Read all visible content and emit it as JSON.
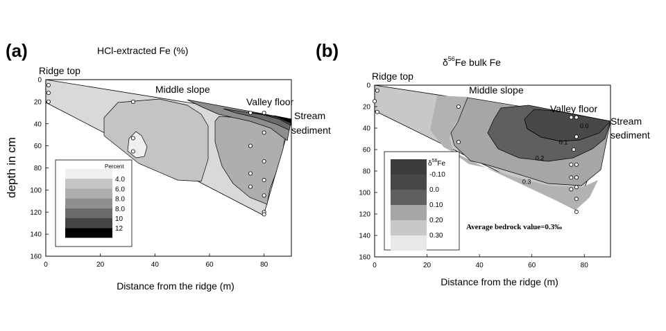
{
  "chart_data": [
    {
      "panel": "(a)",
      "type": "contour",
      "title": "HCl-extracted Fe (%)",
      "xlabel": "Distance from the ridge (m)",
      "ylabel": "depth in cm",
      "xlim": [
        0,
        90
      ],
      "ylim": [
        160,
        0
      ],
      "xticks": [
        "0",
        "20",
        "40",
        "60",
        "80"
      ],
      "yticks": [
        "0",
        "20",
        "40",
        "60",
        "80",
        "100",
        "120",
        "140",
        "160"
      ],
      "sites": [
        "Ridge top",
        "Middle slope",
        "Valley floor",
        "Stream",
        "sediment"
      ],
      "legend": {
        "title": "Percent",
        "placement": "bottom-left",
        "entries": [
          "4.0",
          "6.0",
          "8.0",
          "8.0",
          "10",
          "12"
        ]
      },
      "sample_points": [
        {
          "x": 1,
          "y": 5
        },
        {
          "x": 1,
          "y": 12
        },
        {
          "x": 1,
          "y": 20
        },
        {
          "x": 32,
          "y": 20
        },
        {
          "x": 32,
          "y": 53
        },
        {
          "x": 32,
          "y": 65
        },
        {
          "x": 75,
          "y": 30
        },
        {
          "x": 75,
          "y": 60
        },
        {
          "x": 75,
          "y": 85
        },
        {
          "x": 75,
          "y": 97
        },
        {
          "x": 80,
          "y": 30
        },
        {
          "x": 80,
          "y": 48
        },
        {
          "x": 80,
          "y": 74
        },
        {
          "x": 80,
          "y": 91
        },
        {
          "x": 80,
          "y": 105
        },
        {
          "x": 80,
          "y": 120
        },
        {
          "x": 80,
          "y": 122
        }
      ]
    },
    {
      "panel": "(b)",
      "type": "contour",
      "title": "δ56Fe bulk Fe",
      "title_symbol": "δ",
      "title_superscript": "56",
      "title_suffix": "Fe bulk Fe",
      "xlabel": "Distance from the ridge (m)",
      "xlim": [
        0,
        90
      ],
      "ylim": [
        160,
        0
      ],
      "xticks": [
        "0",
        "20",
        "40",
        "60",
        "80"
      ],
      "yticks": [
        "0",
        "20",
        "40",
        "60",
        "80",
        "100",
        "120",
        "140",
        "160"
      ],
      "sites": [
        "Ridge top",
        "Middle slope",
        "Valley floor",
        "Stream",
        "sediment"
      ],
      "contour_labels": [
        {
          "text": "0.0",
          "x": 80,
          "y": 40
        },
        {
          "text": "0.1",
          "x": 72,
          "y": 55
        },
        {
          "text": "0.2",
          "x": 63,
          "y": 70
        },
        {
          "text": "0.3",
          "x": 58,
          "y": 92
        }
      ],
      "legend": {
        "title_symbol": "δ",
        "title_superscript": "56",
        "title_suffix": "Fe",
        "placement": "bottom-left",
        "entries": [
          "-0.10",
          "0.0",
          "0.10",
          "0.20",
          "0.30"
        ]
      },
      "annotation": "Average bedrock value=0.3‰",
      "sample_points": [
        {
          "x": 1,
          "y": 5
        },
        {
          "x": 0,
          "y": 15
        },
        {
          "x": 1,
          "y": 25
        },
        {
          "x": 32,
          "y": 20
        },
        {
          "x": 32,
          "y": 53
        },
        {
          "x": 75,
          "y": 30
        },
        {
          "x": 77,
          "y": 30
        },
        {
          "x": 77,
          "y": 48
        },
        {
          "x": 76,
          "y": 60
        },
        {
          "x": 75,
          "y": 74
        },
        {
          "x": 77,
          "y": 74
        },
        {
          "x": 75,
          "y": 86
        },
        {
          "x": 77,
          "y": 86
        },
        {
          "x": 75,
          "y": 97
        },
        {
          "x": 77,
          "y": 95
        },
        {
          "x": 77,
          "y": 106
        },
        {
          "x": 77,
          "y": 118
        }
      ]
    }
  ]
}
